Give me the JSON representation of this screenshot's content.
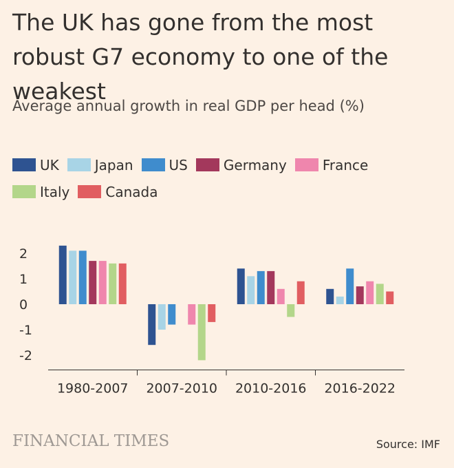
{
  "title": "The UK has gone from the most robust G7 economy to one of the weakest",
  "subtitle": "Average annual growth in real GDP per head (%)",
  "brand": "FINANCIAL TIMES",
  "source": "Source: IMF",
  "colors": {
    "UK": "#2e5391",
    "Japan": "#a8d4e6",
    "US": "#3f8ccd",
    "Germany": "#a3385c",
    "France": "#ef86ad",
    "Italy": "#b3d68a",
    "Canada": "#e15e61"
  },
  "chart_data": {
    "type": "bar",
    "categories": [
      "1980-2007",
      "2007-2010",
      "2010-2016",
      "2016-2022"
    ],
    "series": [
      {
        "name": "UK",
        "values": [
          2.3,
          -1.6,
          1.4,
          0.6
        ]
      },
      {
        "name": "Japan",
        "values": [
          2.1,
          -1.0,
          1.1,
          0.3
        ]
      },
      {
        "name": "US",
        "values": [
          2.1,
          -0.8,
          1.3,
          1.4
        ]
      },
      {
        "name": "Germany",
        "values": [
          1.7,
          0.0,
          1.3,
          0.7
        ]
      },
      {
        "name": "France",
        "values": [
          1.7,
          -0.8,
          0.6,
          0.9
        ]
      },
      {
        "name": "Italy",
        "values": [
          1.6,
          -2.2,
          -0.5,
          0.8
        ]
      },
      {
        "name": "Canada",
        "values": [
          1.6,
          -0.7,
          0.9,
          0.5
        ]
      }
    ],
    "yticks": [
      "2",
      "1",
      "0",
      "-1",
      "-2"
    ],
    "ylim": [
      -2.5,
      2.5
    ],
    "legend_position": "top",
    "grid": false
  }
}
